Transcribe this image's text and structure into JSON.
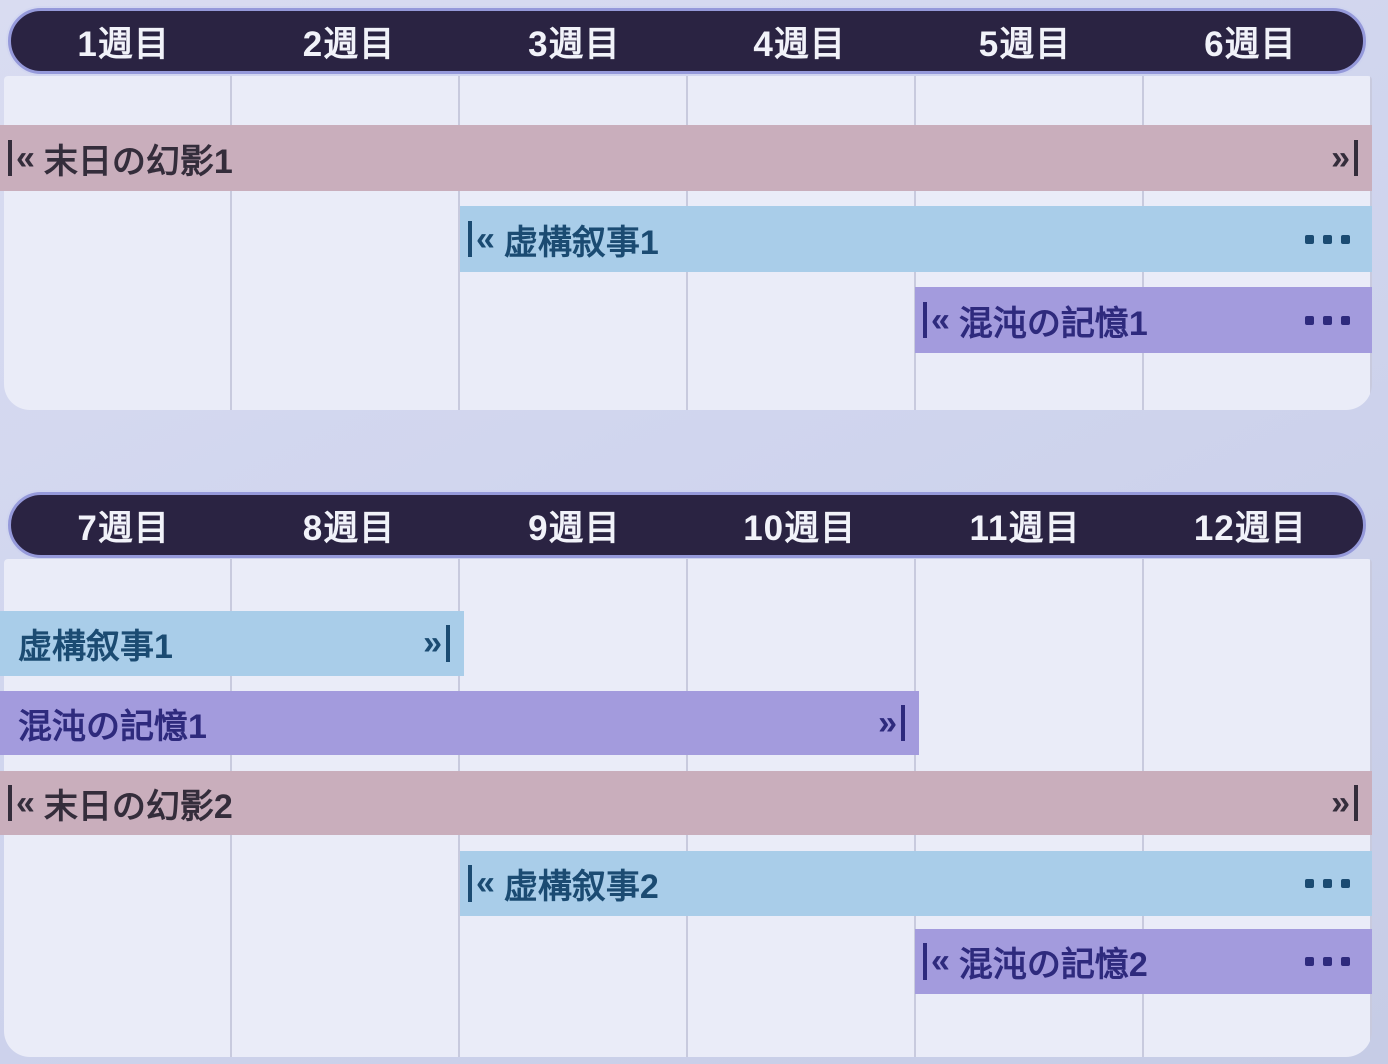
{
  "colors": {
    "header_bg": "#2a2342",
    "header_border": "#9599da",
    "header_text": "#f1f2f9",
    "grid_bg": "#eaecf8",
    "grid_line": "#c8cade",
    "pink_bg": "#c9aebc",
    "pink_text": "#342d3b",
    "blue_bg": "#a9cde9",
    "blue_text": "#1b4b72",
    "purple_bg": "#a39bdd",
    "purple_text": "#2e2a7d",
    "page_bg_top": "#d9dcf1",
    "page_bg_bottom": "#c6cce6"
  },
  "icons": {
    "start_cap": "«",
    "end_cap": "»",
    "ellipsis": "⋯"
  },
  "panels": [
    {
      "weeks": [
        "1週目",
        "2週目",
        "3週目",
        "4週目",
        "5週目",
        "6週目"
      ],
      "bars": [
        {
          "label": "末日の幻影1",
          "color": "pink",
          "start_cap": true,
          "end_cap": true,
          "ellipsis": false
        },
        {
          "label": "虚構叙事1",
          "color": "blue",
          "start_cap": true,
          "end_cap": false,
          "ellipsis": true
        },
        {
          "label": "混沌の記憶1",
          "color": "purple",
          "start_cap": true,
          "end_cap": false,
          "ellipsis": true
        }
      ]
    },
    {
      "weeks": [
        "7週目",
        "8週目",
        "9週目",
        "10週目",
        "11週目",
        "12週目"
      ],
      "bars": [
        {
          "label": "虚構叙事1",
          "color": "blue",
          "start_cap": false,
          "end_cap": true,
          "ellipsis": false
        },
        {
          "label": "混沌の記憶1",
          "color": "purple",
          "start_cap": false,
          "end_cap": true,
          "ellipsis": false
        },
        {
          "label": "末日の幻影2",
          "color": "pink",
          "start_cap": true,
          "end_cap": true,
          "ellipsis": false
        },
        {
          "label": "虚構叙事2",
          "color": "blue",
          "start_cap": true,
          "end_cap": false,
          "ellipsis": true
        },
        {
          "label": "混沌の記憶2",
          "color": "purple",
          "start_cap": true,
          "end_cap": false,
          "ellipsis": true
        }
      ]
    }
  ],
  "chart_data": {
    "type": "gantt",
    "title": "",
    "x_unit": "week (週目)",
    "x_ticks": [
      "1週目",
      "2週目",
      "3週目",
      "4週目",
      "5週目",
      "6週目",
      "7週目",
      "8週目",
      "9週目",
      "10週目",
      "11週目",
      "12週目"
    ],
    "panel_ranges": [
      [
        1,
        6
      ],
      [
        7,
        12
      ]
    ],
    "grid": true,
    "legend_position": "none",
    "tasks": [
      {
        "name": "末日の幻影1",
        "start_week": 1,
        "end_week": 6,
        "continues_after_visible_range": false,
        "color": "#c9aebc"
      },
      {
        "name": "虚構叙事1",
        "start_week": 3,
        "end_week": 8,
        "continues_after_visible_range": false,
        "color": "#a9cde9"
      },
      {
        "name": "混沌の記憶1",
        "start_week": 5,
        "end_week": 10,
        "continues_after_visible_range": false,
        "color": "#a39bdd"
      },
      {
        "name": "末日の幻影2",
        "start_week": 7,
        "end_week": 12,
        "continues_after_visible_range": false,
        "color": "#c9aebc"
      },
      {
        "name": "虚構叙事2",
        "start_week": 9,
        "end_week": 12,
        "continues_after_visible_range": true,
        "color": "#a9cde9"
      },
      {
        "name": "混沌の記憶2",
        "start_week": 11,
        "end_week": 12,
        "continues_after_visible_range": true,
        "color": "#a39bdd"
      }
    ]
  }
}
